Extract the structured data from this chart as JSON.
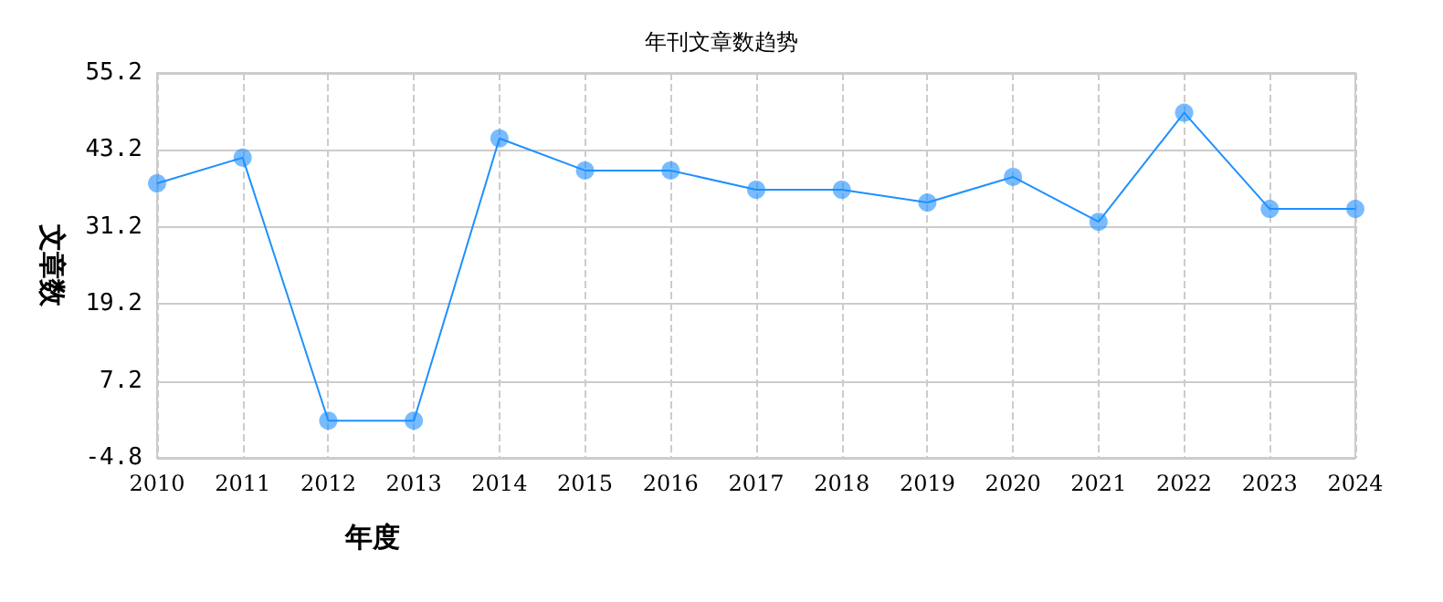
{
  "chart_data": {
    "type": "line",
    "title": "年刊文章数趋势",
    "xlabel": "年度",
    "ylabel": "文章数",
    "categories": [
      "2010",
      "2011",
      "2012",
      "2013",
      "2014",
      "2015",
      "2016",
      "2017",
      "2018",
      "2019",
      "2020",
      "2021",
      "2022",
      "2023",
      "2024"
    ],
    "series": [
      {
        "color": "#1e90ff",
        "values": [
          38,
          42,
          1,
          1,
          45,
          40,
          40,
          37,
          37,
          35,
          39,
          32,
          49,
          34,
          34
        ]
      }
    ],
    "ylim": [
      -4.8,
      55.2
    ],
    "yticks": [
      -4.8,
      7.2,
      19.2,
      31.2,
      43.2,
      55.2
    ],
    "grid": true,
    "marker": "circle",
    "line_style": "solid"
  }
}
